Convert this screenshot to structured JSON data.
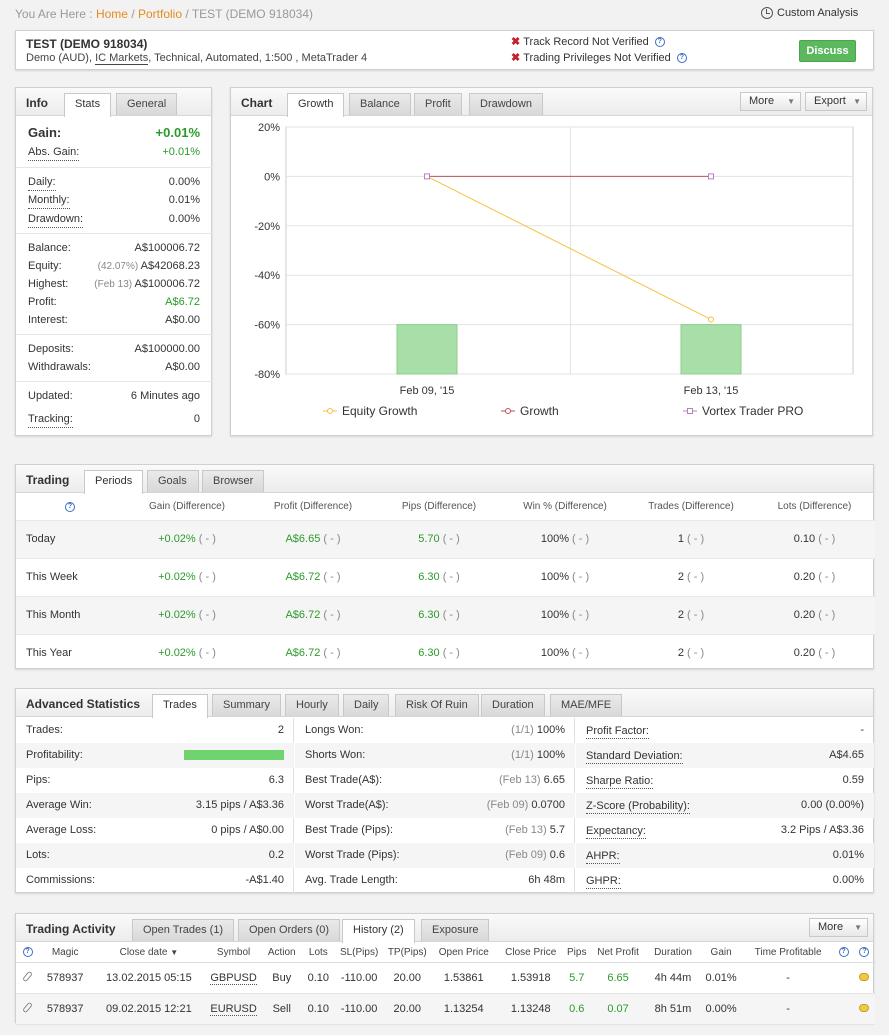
{
  "breadcrumb": {
    "prefix": "You Are Here :",
    "home": "Home",
    "portfolio": "Portfolio",
    "current": "TEST (DEMO 918034)"
  },
  "custom_analysis": "Custom Analysis",
  "account": {
    "title": "TEST (DEMO 918034)",
    "sub_prefix": "Demo (AUD), ",
    "broker": "IC Markets",
    "sub_suffix": ", Technical, Automated, 1:500 , MetaTrader 4",
    "track_record": "Track Record Not Verified",
    "trading_privileges": "Trading Privileges Not Verified",
    "discuss": "Discuss",
    "help": "?"
  },
  "info": {
    "title": "Info",
    "tabs": [
      "Stats",
      "General"
    ],
    "gain_label": "Gain:",
    "gain_value": "+0.01%",
    "abs_gain_label": "Abs. Gain:",
    "abs_gain_value": "+0.01%",
    "daily_label": "Daily:",
    "daily_value": "0.00%",
    "monthly_label": "Monthly:",
    "monthly_value": "0.01%",
    "drawdown_label": "Drawdown:",
    "drawdown_value": "0.00%",
    "balance_label": "Balance:",
    "balance_value": "A$100006.72",
    "equity_label": "Equity:",
    "equity_note": "(42.07%)",
    "equity_value": "A$42068.23",
    "highest_label": "Highest:",
    "highest_note": "(Feb 13)",
    "highest_value": "A$100006.72",
    "profit_label": "Profit:",
    "profit_value": "A$6.72",
    "interest_label": "Interest:",
    "interest_value": "A$0.00",
    "deposits_label": "Deposits:",
    "deposits_value": "A$100000.00",
    "withdrawals_label": "Withdrawals:",
    "withdrawals_value": "A$0.00",
    "updated_label": "Updated:",
    "updated_value": "6 Minutes ago",
    "tracking_label": "Tracking:",
    "tracking_value": "0"
  },
  "chart_panel": {
    "title": "Chart",
    "tabs": [
      "Growth",
      "Balance",
      "Profit",
      "Drawdown"
    ],
    "more": "More",
    "export": "Export"
  },
  "chart_data": {
    "type": "line",
    "categories": [
      "Feb 09, '15",
      "Feb 13, '15"
    ],
    "ylim": [
      -80,
      20
    ],
    "y_ticks": [
      "20%",
      "0%",
      "-20%",
      "-40%",
      "-60%",
      "-80%"
    ],
    "y_tick_values": [
      20,
      0,
      -20,
      -40,
      -60,
      -80
    ],
    "grid": true,
    "legend_position": "bottom",
    "series": [
      {
        "name": "Equity Growth",
        "type": "line",
        "values": [
          0,
          -57.93
        ],
        "color": "#f5c242"
      },
      {
        "name": "Growth",
        "type": "line",
        "values": [
          0,
          0
        ],
        "color": "#c0505a"
      },
      {
        "name": "Vortex Trader PRO",
        "type": "line",
        "values": [
          0,
          0
        ],
        "color": "#b880c0"
      },
      {
        "name": "",
        "type": "bar",
        "values": [
          -60,
          -60
        ],
        "color": "#a8dea8"
      }
    ]
  },
  "trading": {
    "title": "Trading",
    "tabs": [
      "Periods",
      "Goals",
      "Browser"
    ],
    "help": "?",
    "headers": [
      "Gain (Difference)",
      "Profit (Difference)",
      "Pips (Difference)",
      "Win % (Difference)",
      "Trades (Difference)",
      "Lots (Difference)"
    ],
    "rows": [
      {
        "period": "Today",
        "gain": "+0.02%",
        "profit": "A$6.65",
        "pips": "5.70",
        "win": "100%",
        "trades": "1",
        "lots": "0.10",
        "diff": "( - )"
      },
      {
        "period": "This Week",
        "gain": "+0.02%",
        "profit": "A$6.72",
        "pips": "6.30",
        "win": "100%",
        "trades": "2",
        "lots": "0.20",
        "diff": "( - )"
      },
      {
        "period": "This Month",
        "gain": "+0.02%",
        "profit": "A$6.72",
        "pips": "6.30",
        "win": "100%",
        "trades": "2",
        "lots": "0.20",
        "diff": "( - )"
      },
      {
        "period": "This Year",
        "gain": "+0.02%",
        "profit": "A$6.72",
        "pips": "6.30",
        "win": "100%",
        "trades": "2",
        "lots": "0.20",
        "diff": "( - )"
      }
    ]
  },
  "advanced": {
    "title": "Advanced Statistics",
    "tabs": [
      "Trades",
      "Summary",
      "Hourly",
      "Daily",
      "Risk Of Ruin",
      "Duration",
      "MAE/MFE"
    ],
    "col1": [
      {
        "label": "Trades:",
        "value": "2"
      },
      {
        "label": "Profitability:",
        "value": "",
        "bar": 1.0
      },
      {
        "label": "Pips:",
        "value": "6.3"
      },
      {
        "label": "Average Win:",
        "value": "3.15 pips / A$3.36"
      },
      {
        "label": "Average Loss:",
        "value": "0 pips / A$0.00"
      },
      {
        "label": "Lots:",
        "value": "0.2"
      },
      {
        "label": "Commissions:",
        "value": "-A$1.40"
      }
    ],
    "col2": [
      {
        "label": "Longs Won:",
        "note": "(1/1)",
        "value": "100%"
      },
      {
        "label": "Shorts Won:",
        "note": "(1/1)",
        "value": "100%"
      },
      {
        "label": "Best Trade(A$):",
        "note": "(Feb 13)",
        "value": "6.65"
      },
      {
        "label": "Worst Trade(A$):",
        "note": "(Feb 09)",
        "value": "0.0700"
      },
      {
        "label": "Best Trade (Pips):",
        "note": "(Feb 13)",
        "value": "5.7"
      },
      {
        "label": "Worst Trade (Pips):",
        "note": "(Feb 09)",
        "value": "0.6"
      },
      {
        "label": "Avg. Trade Length:",
        "note": "",
        "value": "6h 48m"
      }
    ],
    "col3": [
      {
        "label": "Profit Factor:",
        "value": "-"
      },
      {
        "label": "Standard Deviation:",
        "value": "A$4.65"
      },
      {
        "label": "Sharpe Ratio:",
        "value": "0.59"
      },
      {
        "label": "Z-Score (Probability):",
        "value": "0.00 (0.00%)"
      },
      {
        "label": "Expectancy:",
        "value": "3.2 Pips / A$3.36"
      },
      {
        "label": "AHPR:",
        "value": "0.01%"
      },
      {
        "label": "GHPR:",
        "value": "0.00%"
      }
    ]
  },
  "activity": {
    "title": "Trading Activity",
    "tabs": [
      "Open Trades (1)",
      "Open Orders (0)",
      "History (2)",
      "Exposure"
    ],
    "more": "More",
    "help": "?",
    "headers": [
      "Magic",
      "Close date",
      "Symbol",
      "Action",
      "Lots",
      "SL(Pips)",
      "TP(Pips)",
      "Open Price",
      "Close Price",
      "Pips",
      "Net Profit",
      "Duration",
      "Gain",
      "Time Profitable"
    ],
    "rows": [
      {
        "magic": "578937",
        "close_date": "13.02.2015 05:15",
        "symbol": "GBPUSD",
        "action": "Buy",
        "lots": "0.10",
        "sl": "-110.00",
        "tp": "20.00",
        "open": "1.53861",
        "close": "1.53918",
        "pips": "5.7",
        "profit": "6.65",
        "duration": "4h 44m",
        "gain": "0.01%",
        "time_profitable": "-"
      },
      {
        "magic": "578937",
        "close_date": "09.02.2015 12:21",
        "symbol": "EURUSD",
        "action": "Sell",
        "lots": "0.10",
        "sl": "-110.00",
        "tp": "20.00",
        "open": "1.13254",
        "close": "1.13248",
        "pips": "0.6",
        "profit": "0.07",
        "duration": "8h 51m",
        "gain": "0.00%",
        "time_profitable": "-"
      }
    ]
  }
}
